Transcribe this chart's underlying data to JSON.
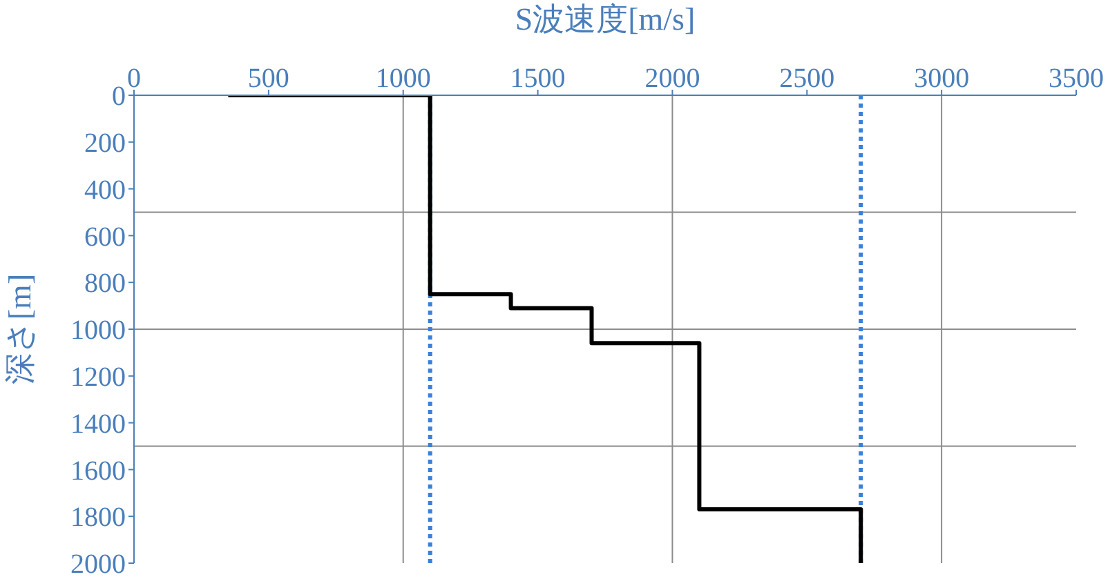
{
  "chart_data": {
    "type": "line",
    "xlabel": "S波速度[m/s]",
    "ylabel": "深さ[m]",
    "xlim": [
      0,
      3500
    ],
    "xticks": [
      0,
      500,
      1000,
      1500,
      2000,
      2500,
      3000,
      3500
    ],
    "ylim": [
      2000,
      0
    ],
    "yticks": [
      0,
      200,
      400,
      600,
      800,
      1000,
      1200,
      1400,
      1600,
      1800,
      2000
    ],
    "series": [
      {
        "color": "#000000",
        "x": [
          350,
          1100,
          1100,
          1400,
          1400,
          1700,
          1700,
          2100,
          2100,
          2700,
          2700
        ],
        "values": [
          0,
          0,
          850,
          850,
          910,
          910,
          1060,
          1060,
          1770,
          1770,
          2000
        ]
      }
    ],
    "marker": "none",
    "line_style": "solid",
    "legend": false,
    "ref_lines": [
      {
        "axis": "x",
        "value": 1100,
        "color": "#3a7fd9",
        "line_style": "dotted"
      },
      {
        "axis": "x",
        "value": 2700,
        "color": "#3a7fd9",
        "line_style": "dotted"
      },
      {
        "axis": "x",
        "value": 1000,
        "color": "#8c8c8c",
        "line_style": "solid"
      },
      {
        "axis": "x",
        "value": 2000,
        "color": "#8c8c8c",
        "line_style": "solid"
      },
      {
        "axis": "x",
        "value": 3000,
        "color": "#8c8c8c",
        "line_style": "solid"
      },
      {
        "axis": "y",
        "value": 500,
        "color": "#8c8c8c",
        "line_style": "solid"
      },
      {
        "axis": "y",
        "value": 1000,
        "color": "#8c8c8c",
        "line_style": "solid"
      },
      {
        "axis": "y",
        "value": 1500,
        "color": "#8c8c8c",
        "line_style": "solid"
      }
    ]
  }
}
